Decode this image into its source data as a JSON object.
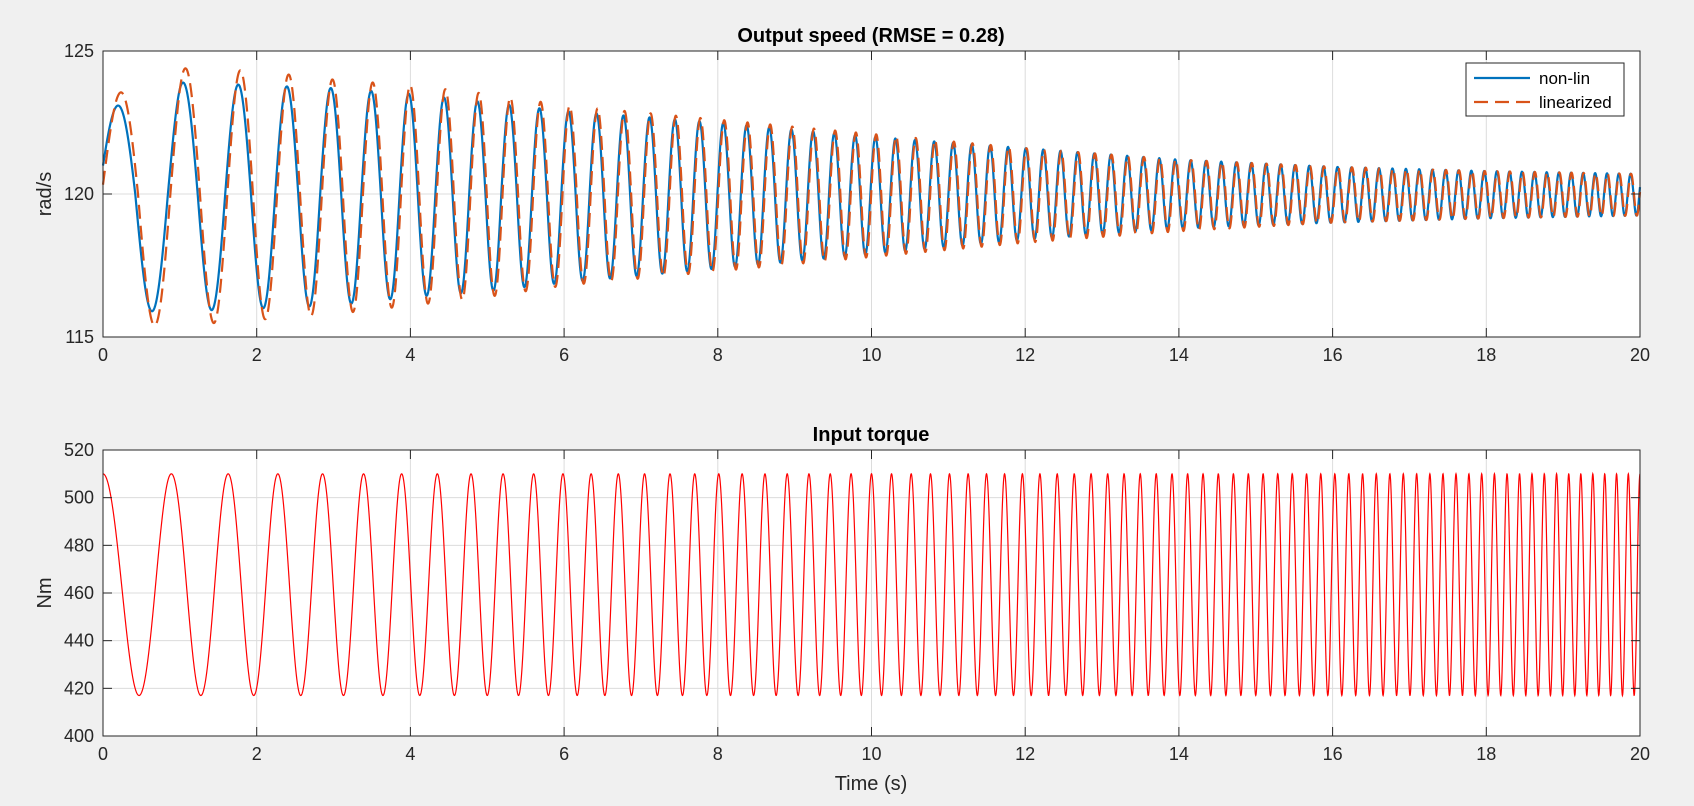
{
  "colors": {
    "non_lin": "#0072BD",
    "linearized": "#D95319",
    "input_torque": "#FF0000",
    "figure_background": "#F0F0F0"
  },
  "chart_data": [
    {
      "type": "line",
      "title": "Output speed (RMSE = 0.28)",
      "xlabel": "",
      "ylabel": "rad/s",
      "xlim": [
        0,
        20
      ],
      "ylim": [
        115,
        125
      ],
      "xticks": [
        "0",
        "2",
        "4",
        "6",
        "8",
        "10",
        "12",
        "14",
        "16",
        "18",
        "20"
      ],
      "yticks": [
        "115",
        "120",
        "125"
      ],
      "grid": true,
      "legend": {
        "position": "top-right",
        "entries": [
          "non-lin",
          "linearized"
        ]
      },
      "signal": {
        "kind": "damped chirp response",
        "offset": 120,
        "start_frequency_hz": 1.0,
        "end_frequency_hz": 6.6,
        "sweep_duration_s": 20
      },
      "series": [
        {
          "name": "non-lin",
          "style": "solid",
          "peak_amplitude": [
            [
              0,
              2.9
            ],
            [
              1,
              3.9
            ],
            [
              2,
              3.8
            ],
            [
              3,
              3.7
            ],
            [
              4,
              3.5
            ],
            [
              5,
              3.2
            ],
            [
              6,
              2.9
            ],
            [
              8,
              2.5
            ],
            [
              10,
              2.0
            ],
            [
              12,
              1.6
            ],
            [
              14,
              1.2
            ],
            [
              16,
              0.95
            ],
            [
              18,
              0.8
            ],
            [
              20,
              0.7
            ]
          ],
          "trough_amplitude": [
            [
              0,
              4.1
            ],
            [
              1,
              4.1
            ],
            [
              2,
              4.0
            ],
            [
              3,
              3.9
            ],
            [
              4,
              3.6
            ],
            [
              5,
              3.4
            ],
            [
              6,
              3.1
            ],
            [
              8,
              2.6
            ],
            [
              10,
              2.1
            ],
            [
              12,
              1.6
            ],
            [
              14,
              1.2
            ],
            [
              16,
              1.0
            ],
            [
              18,
              0.85
            ],
            [
              20,
              0.75
            ]
          ]
        },
        {
          "name": "linearized",
          "style": "dashed",
          "phase_lag_cycles": 0.04,
          "peak_amplitude": [
            [
              0,
              3.3
            ],
            [
              1,
              4.4
            ],
            [
              2,
              4.3
            ],
            [
              3,
              4.0
            ],
            [
              4,
              3.8
            ],
            [
              5,
              3.5
            ],
            [
              6,
              3.1
            ],
            [
              8,
              2.6
            ],
            [
              10,
              2.1
            ],
            [
              12,
              1.6
            ],
            [
              14,
              1.2
            ],
            [
              16,
              0.95
            ],
            [
              18,
              0.8
            ],
            [
              20,
              0.7
            ]
          ],
          "trough_amplitude": [
            [
              0,
              4.6
            ],
            [
              1,
              4.6
            ],
            [
              2,
              4.4
            ],
            [
              3,
              4.2
            ],
            [
              4,
              3.9
            ],
            [
              5,
              3.6
            ],
            [
              6,
              3.2
            ],
            [
              8,
              2.7
            ],
            [
              10,
              2.2
            ],
            [
              12,
              1.7
            ],
            [
              14,
              1.3
            ],
            [
              16,
              1.0
            ],
            [
              18,
              0.85
            ],
            [
              20,
              0.75
            ]
          ]
        }
      ]
    },
    {
      "type": "line",
      "title": "Input torque",
      "xlabel": "Time (s)",
      "ylabel": "Nm",
      "xlim": [
        0,
        20
      ],
      "ylim": [
        400,
        520
      ],
      "xticks": [
        "0",
        "2",
        "4",
        "6",
        "8",
        "10",
        "12",
        "14",
        "16",
        "18",
        "20"
      ],
      "yticks": [
        "400",
        "420",
        "440",
        "460",
        "480",
        "500",
        "520"
      ],
      "grid": true,
      "signal": {
        "kind": "chirp (cosine)",
        "offset": 463.5,
        "amplitude": 46.5,
        "start_frequency_hz": 1.0,
        "end_frequency_hz": 6.6,
        "sweep_duration_s": 20,
        "max": 510,
        "min": 417
      },
      "series": [
        {
          "name": "",
          "style": "solid"
        }
      ]
    }
  ]
}
